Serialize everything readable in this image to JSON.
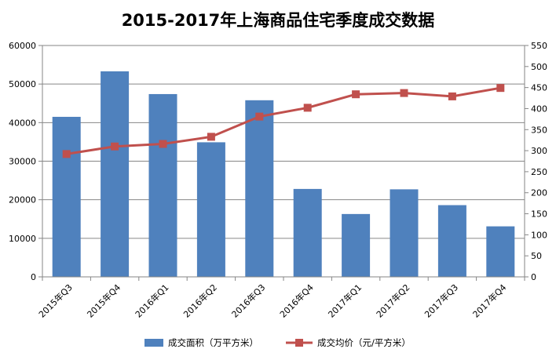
{
  "chart_data": {
    "type": "bar+line",
    "title": "2015-2017年上海商品住宅季度成交数据",
    "categories": [
      "2015年Q3",
      "2015年Q4",
      "2016年Q1",
      "2016年Q2",
      "2016年Q3",
      "2016年Q4",
      "2017年Q1",
      "2017年Q2",
      "2017年Q3",
      "2017年Q4"
    ],
    "series": [
      {
        "name": "成交面积（万平方米）",
        "kind": "bar",
        "axis": "left",
        "color": "#4f81bd",
        "values": [
          41500,
          53300,
          47400,
          34900,
          45800,
          22800,
          16300,
          22700,
          18600,
          13100
        ]
      },
      {
        "name": "成交均价（元/平方米）",
        "kind": "line",
        "axis": "right",
        "color": "#c0504d",
        "values": [
          292,
          310,
          316,
          333,
          381,
          402,
          434,
          437,
          429,
          449
        ]
      }
    ],
    "left_axis": {
      "min": 0,
      "max": 60000,
      "step": 10000,
      "ticks": [
        "0",
        "10000",
        "20000",
        "30000",
        "40000",
        "50000",
        "60000"
      ]
    },
    "right_axis": {
      "min": 0,
      "max": 550,
      "step": 50,
      "ticks": [
        "0",
        "50",
        "100",
        "150",
        "200",
        "250",
        "300",
        "350",
        "400",
        "450",
        "500",
        "550"
      ]
    },
    "grid": true,
    "legend_position": "bottom"
  }
}
